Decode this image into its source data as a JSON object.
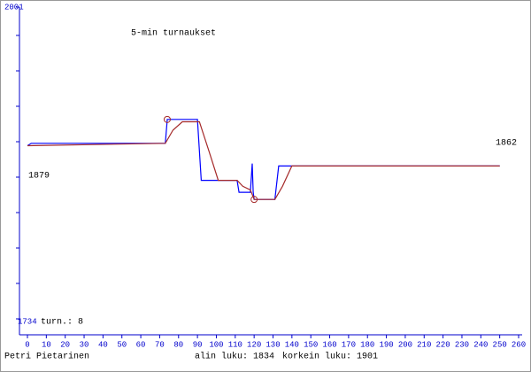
{
  "chart_data": {
    "type": "line",
    "title": "5-min turnaukset",
    "xlim": [
      0,
      260
    ],
    "xticks": [
      0,
      10,
      20,
      30,
      40,
      50,
      60,
      70,
      80,
      90,
      100,
      110,
      120,
      130,
      140,
      150,
      160,
      170,
      180,
      190,
      200,
      210,
      220,
      230,
      240,
      250,
      260
    ],
    "ylim": [
      1734,
      2001
    ],
    "yticks": [
      1734,
      2001
    ],
    "axis_color": "#0000cc",
    "series": [
      {
        "color": "#0000ff",
        "x": [
          0,
          2,
          73,
          74,
          90,
          92,
          111,
          112,
          118,
          119,
          119.5,
          120,
          131,
          133,
          250
        ],
        "values": [
          1879,
          1881,
          1881,
          1901,
          1901,
          1850,
          1850,
          1840,
          1840,
          1864,
          1840,
          1834,
          1834,
          1862,
          1862
        ]
      },
      {
        "color": "#a52a2a",
        "x": [
          0,
          73,
          77,
          82,
          91,
          96,
          101,
          111,
          114,
          118,
          120,
          131,
          135,
          140,
          250
        ],
        "values": [
          1879,
          1881,
          1892,
          1899,
          1899,
          1875,
          1850,
          1850,
          1845,
          1842,
          1834,
          1834,
          1845,
          1862,
          1862
        ]
      }
    ],
    "markers": {
      "color": "#a52a2a",
      "x": [
        74,
        120
      ],
      "values": [
        1901,
        1834
      ]
    },
    "start_label": "1879",
    "end_label": "1862",
    "games_label": "turn.: 8",
    "author": "Petri Pietarinen",
    "low_label": "alin luku: 1834",
    "high_label": "korkein luku: 1901"
  }
}
